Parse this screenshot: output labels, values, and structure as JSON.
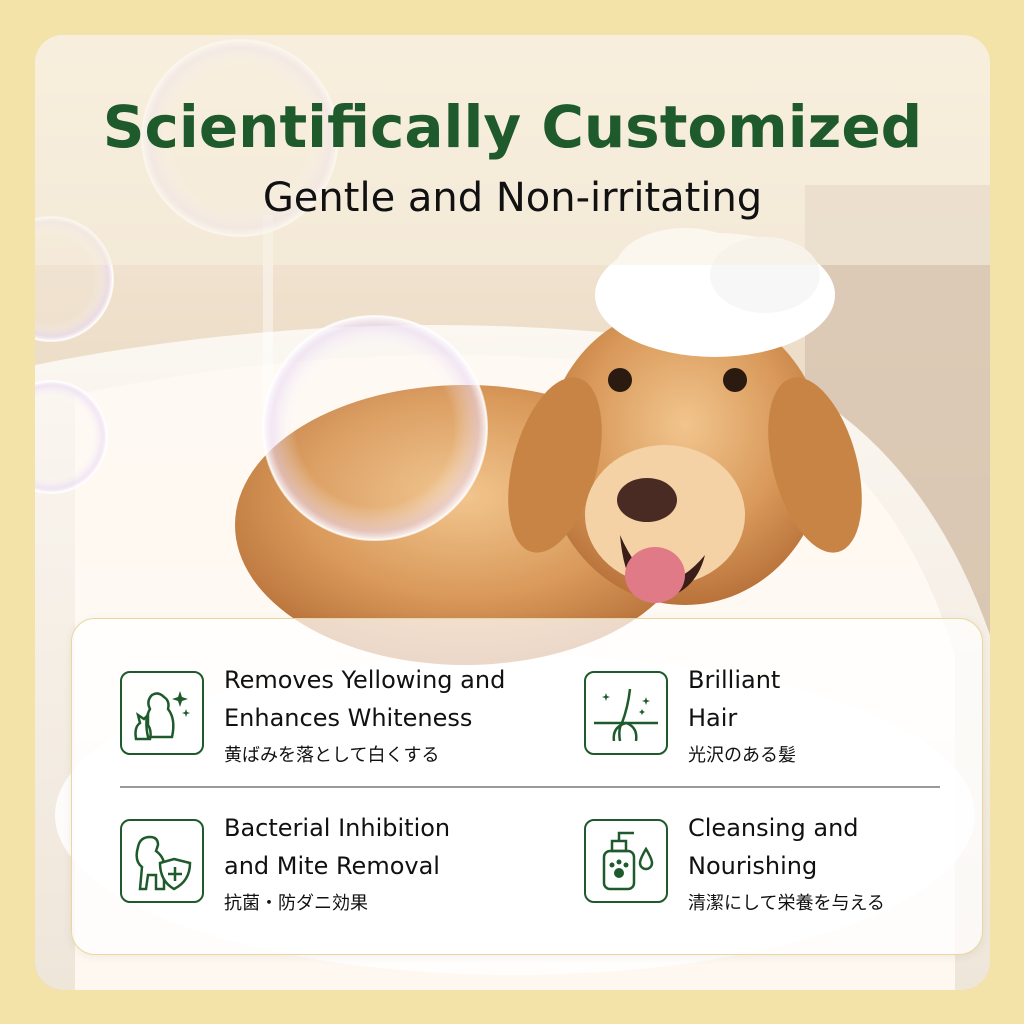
{
  "header": {
    "title": "Scientifically Customized",
    "subtitle": "Gentle and Non-irritating"
  },
  "features": [
    {
      "title_line1": "Removes Yellowing and",
      "title_line2": "Enhances Whiteness",
      "japanese": "黄ばみを落として白くする",
      "icon": "dog-cat-sparkle-icon"
    },
    {
      "title_line1": "Brilliant",
      "title_line2": "Hair",
      "japanese": "光沢のある髪",
      "icon": "hair-follicle-icon"
    },
    {
      "title_line1": "Bacterial Inhibition",
      "title_line2": "and Mite Removal",
      "japanese": "抗菌・防ダニ効果",
      "icon": "dog-shield-icon"
    },
    {
      "title_line1": "Cleansing and",
      "title_line2": "Nourishing",
      "japanese": "清潔にして栄養を与える",
      "icon": "shampoo-bottle-icon"
    }
  ],
  "colors": {
    "brand_green": "#1e5a2b",
    "background": "#f3e3a8",
    "text": "#111111"
  }
}
